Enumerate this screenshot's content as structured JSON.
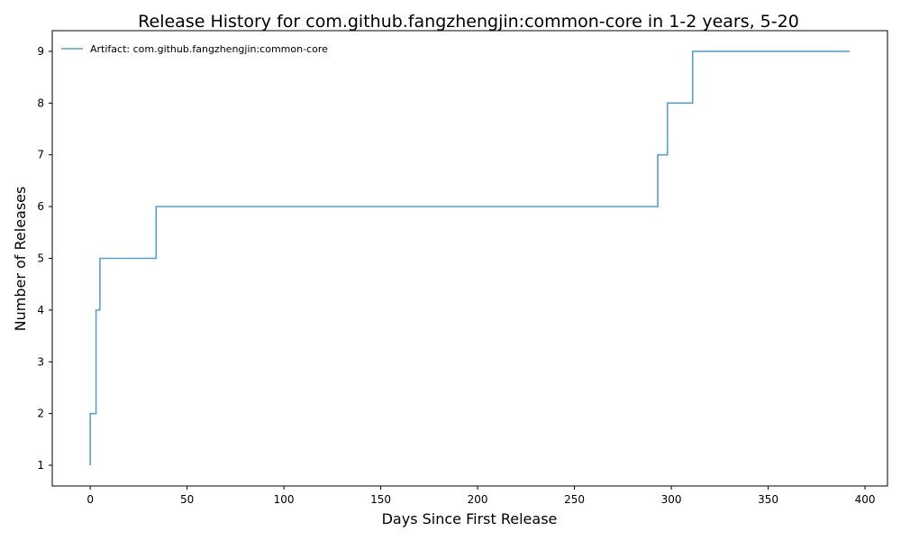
{
  "chart_data": {
    "type": "line",
    "step": "post",
    "title": "Release History for com.github.fangzhengjin:common-core in 1-2 years, 5-20",
    "xlabel": "Days Since First Release",
    "ylabel": "Number of Releases",
    "xlim": [
      -19.6,
      411.6
    ],
    "ylim": [
      0.6,
      9.4
    ],
    "xticks": [
      0,
      50,
      100,
      150,
      200,
      250,
      300,
      350,
      400
    ],
    "yticks": [
      1,
      2,
      3,
      4,
      5,
      6,
      7,
      8,
      9
    ],
    "grid": false,
    "legend_position": "upper-left",
    "series": [
      {
        "name": "Artifact: com.github.fangzhengjin:common-core",
        "color": "#5b9fcd",
        "x": [
          0,
          0,
          3,
          5,
          34,
          293,
          298,
          311,
          392
        ],
        "y": [
          1,
          2,
          4,
          5,
          6,
          7,
          8,
          9,
          9
        ]
      }
    ]
  }
}
